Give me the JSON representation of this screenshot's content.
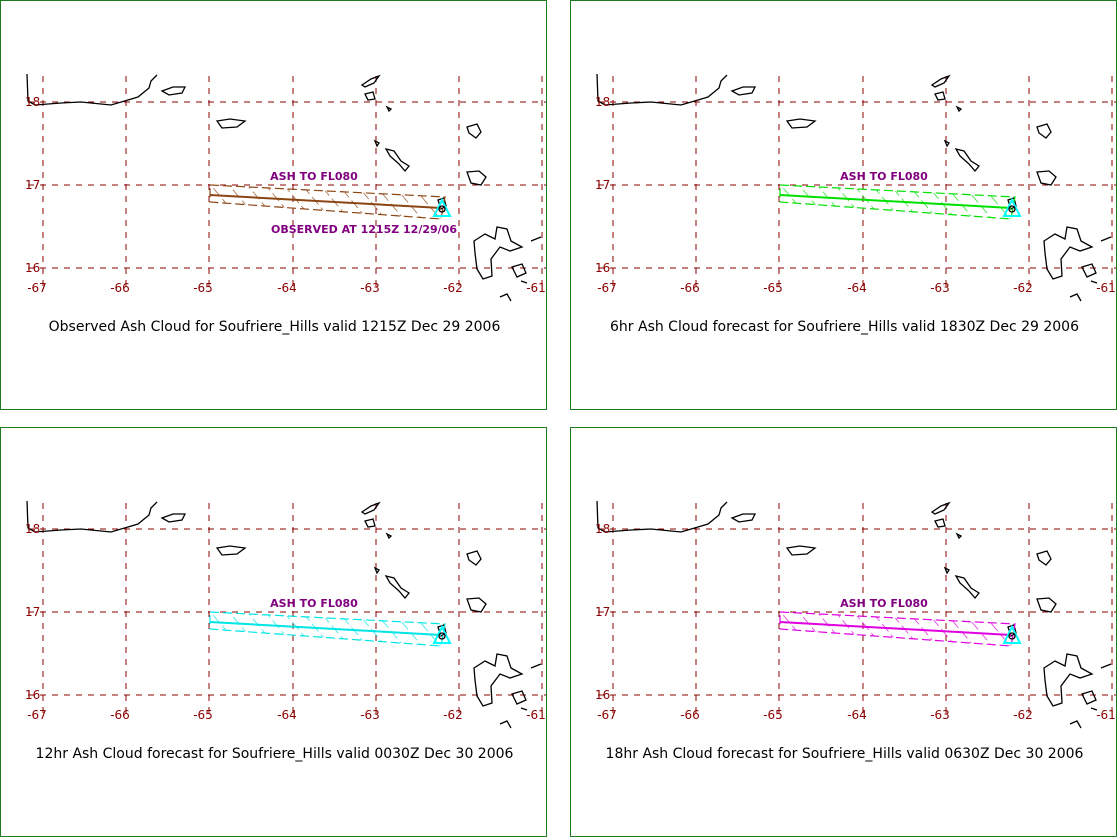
{
  "colors": {
    "panel_border": "#1e7a1e",
    "grid": "#8b0000",
    "tick_label": "#8b0000",
    "annotation": "#800080",
    "coastline": "#000000",
    "volcano": "#00ffff"
  },
  "axes": {
    "x_ticks": [
      "-67",
      "-66",
      "-65",
      "-64",
      "-63",
      "-62",
      "-61"
    ],
    "y_ticks": [
      "18",
      "17",
      "16"
    ]
  },
  "panels": [
    {
      "caption": "Observed Ash Cloud for Soufriere_Hills valid 1215Z Dec 29 2006",
      "cloud_color": "#8b4513",
      "cloud_label": "ASH TO FL080",
      "sub_label": "OBSERVED AT 1215Z 12/29/06"
    },
    {
      "caption": "6hr Ash Cloud forecast for Soufriere_Hills valid 1830Z Dec 29 2006",
      "cloud_color": "#00e000",
      "cloud_label": "ASH TO FL080"
    },
    {
      "caption": "12hr Ash Cloud forecast for Soufriere_Hills valid 0030Z Dec 30 2006",
      "cloud_color": "#00e5e5",
      "cloud_label": "ASH TO FL080"
    },
    {
      "caption": "18hr Ash Cloud forecast for Soufriere_Hills valid 0630Z Dec 30 2006",
      "cloud_color": "#e000e0",
      "cloud_label": "ASH TO FL080"
    }
  ]
}
